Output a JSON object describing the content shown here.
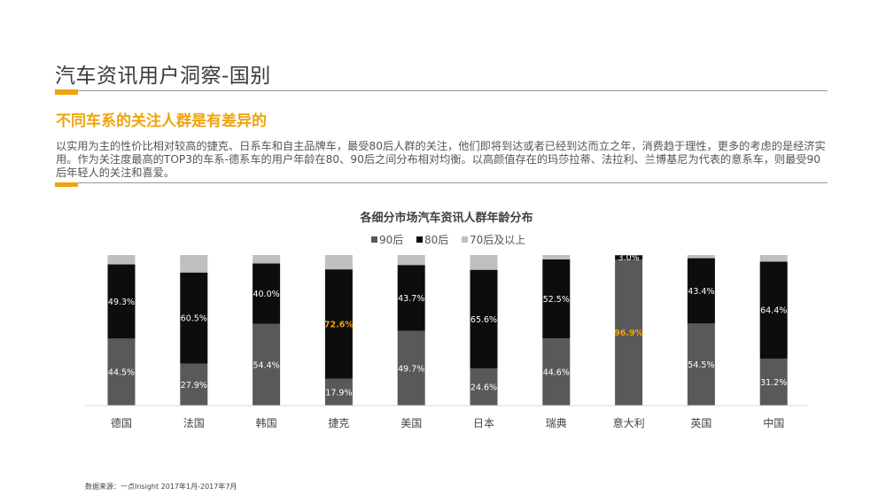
{
  "page": {
    "title": "汽车资讯用户洞察-国别",
    "subtitle": "不同车系的关注人群是有差异的",
    "body_text": "以实用为主的性价比相对较高的捷克、日系车和自主品牌车，最受80后人群的关注，他们即将到达或者已经到达而立之年，消费趋于理性，更多的考虑的是经济实用。作为关注度最高的TOP3的车系-德系车的用户年龄在80、90后之间分布相对均衡。以高颜值存在的玛莎拉蒂、法拉利、兰博基尼为代表的意系车，则最受90后年轻人的关注和喜爱。",
    "source": "数据来源：一点Insight   2017年1月-2017年7月"
  },
  "colors": {
    "accent": "#f0a30a",
    "series_90": "#595959",
    "series_80": "#0d0d0d",
    "series_70": "#bfbfbf",
    "label_light": "#ffffff",
    "label_highlight": "#f0a30a"
  },
  "chart_data": {
    "type": "bar",
    "stacked": true,
    "percent": true,
    "title": "各细分市场汽车资讯人群年龄分布",
    "legend_position": "top",
    "categories": [
      "德国",
      "法国",
      "韩国",
      "捷克",
      "美国",
      "日本",
      "瑞典",
      "意大利",
      "英国",
      "中国"
    ],
    "series": [
      {
        "name": "90后",
        "values": [
          44.5,
          27.9,
          54.4,
          17.9,
          49.7,
          24.6,
          44.6,
          96.9,
          54.5,
          31.2
        ],
        "labels": [
          "44.5%",
          "27.9%",
          "54.4%",
          "17.9%",
          "49.7%",
          "24.6%",
          "44.6%",
          "96.9%",
          "54.5%",
          "31.2%"
        ]
      },
      {
        "name": "80后",
        "values": [
          49.3,
          60.5,
          40.0,
          72.6,
          43.7,
          65.6,
          52.5,
          3.0,
          43.4,
          64.4
        ],
        "labels": [
          "49.3%",
          "60.5%",
          "40.0%",
          "72.6%",
          "43.7%",
          "65.6%",
          "52.5%",
          "3.0%",
          "43.4%",
          "64.4%"
        ]
      },
      {
        "name": "70后及以上",
        "values": [
          6.2,
          11.6,
          5.6,
          9.5,
          6.6,
          9.8,
          2.9,
          0.1,
          2.1,
          4.4
        ],
        "labels": []
      }
    ],
    "highlighted": [
      {
        "series": "80后",
        "category": "捷克"
      },
      {
        "series": "90后",
        "category": "意大利"
      }
    ],
    "ylim": [
      0,
      100
    ],
    "grid": false
  }
}
